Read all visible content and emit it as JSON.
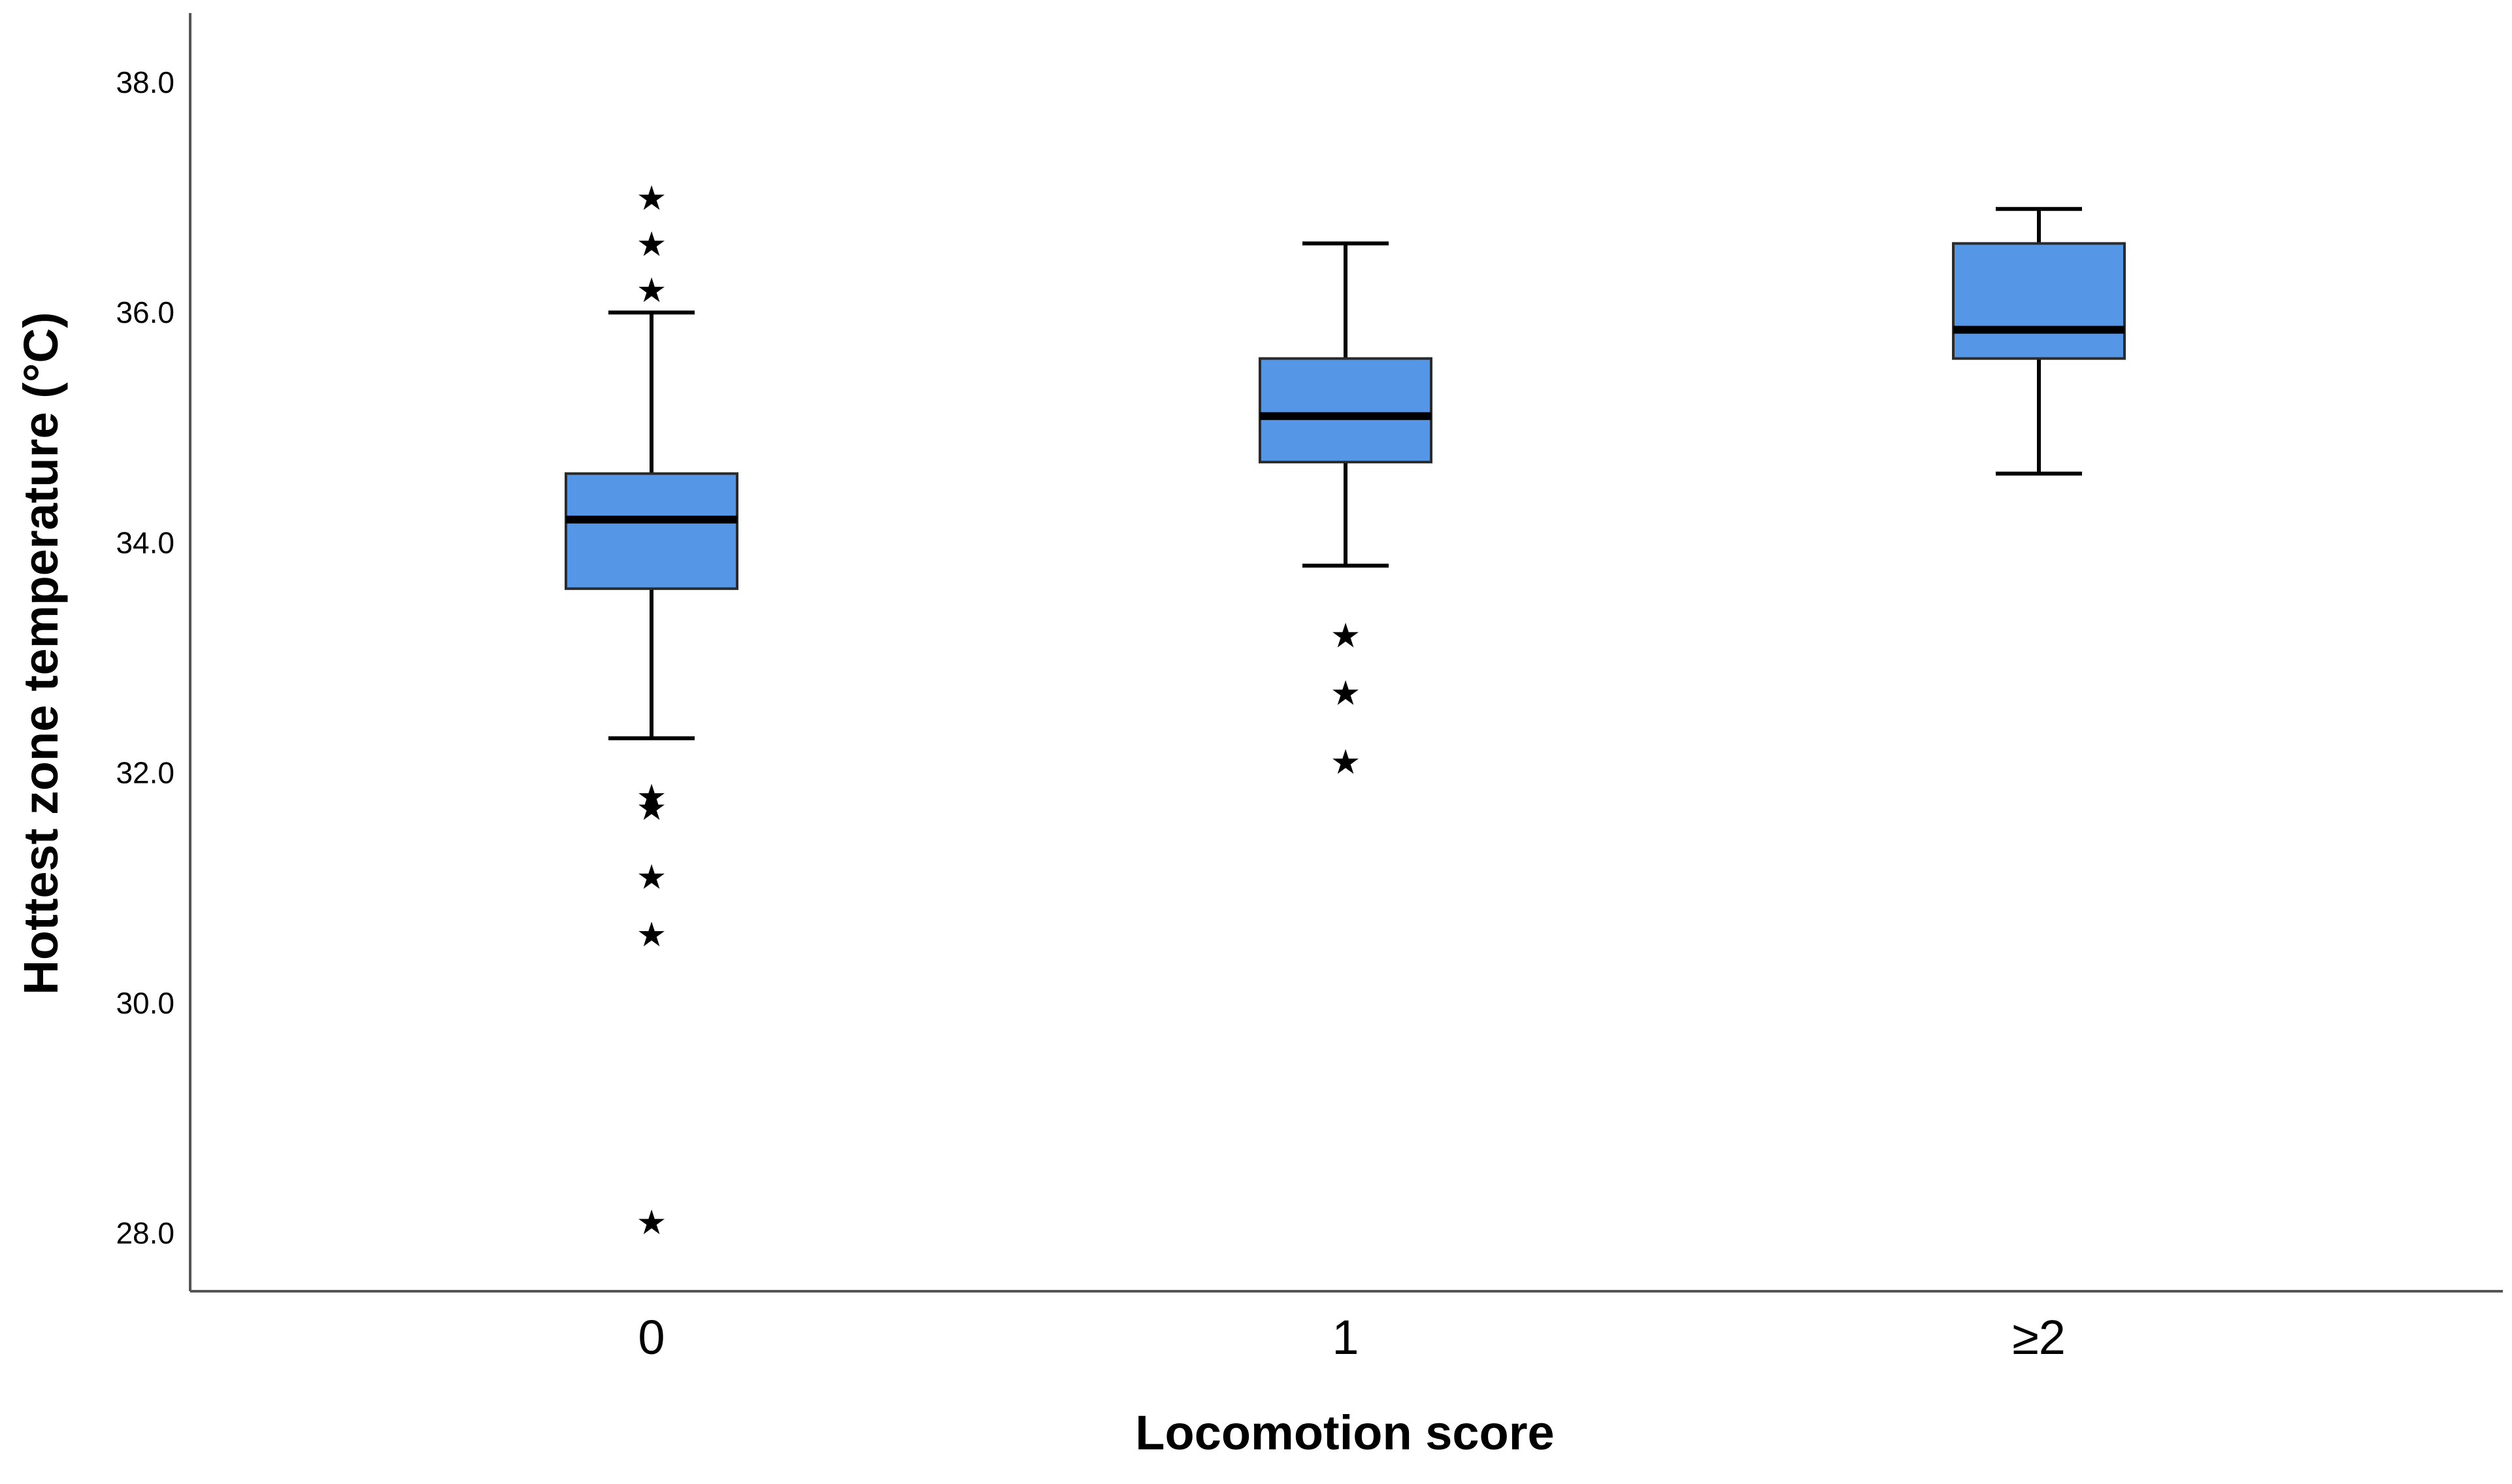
{
  "chart_data": {
    "type": "boxplot",
    "title": "",
    "xlabel": "Locomotion score",
    "ylabel": "Hottest zone temperature (°C)",
    "ylim": [
      27.6,
      38.6
    ],
    "yticks": [
      "28.0",
      "30.0",
      "32.0",
      "34.0",
      "36.0",
      "38.0"
    ],
    "ytick_values": [
      28,
      30,
      32,
      34,
      36,
      38
    ],
    "grid": false,
    "box_color": "#5596e6",
    "outlier_symbol": "★",
    "categories": [
      "0",
      "1",
      "≥2"
    ],
    "boxes": [
      {
        "name": "0",
        "whisker_low": 32.3,
        "q1": 33.6,
        "median": 34.2,
        "q3": 34.6,
        "whisker_high": 36.0,
        "outliers": [
          37.0,
          36.6,
          36.2,
          31.8,
          31.7,
          31.1,
          30.6,
          28.1
        ]
      },
      {
        "name": "1",
        "whisker_low": 33.8,
        "q1": 34.7,
        "median": 35.1,
        "q3": 35.6,
        "whisker_high": 36.6,
        "outliers": [
          33.2,
          32.7,
          32.1
        ]
      },
      {
        "name": "≥2",
        "whisker_low": 34.6,
        "q1": 35.6,
        "median": 35.85,
        "q3": 36.6,
        "whisker_high": 36.9,
        "outliers": []
      }
    ]
  }
}
